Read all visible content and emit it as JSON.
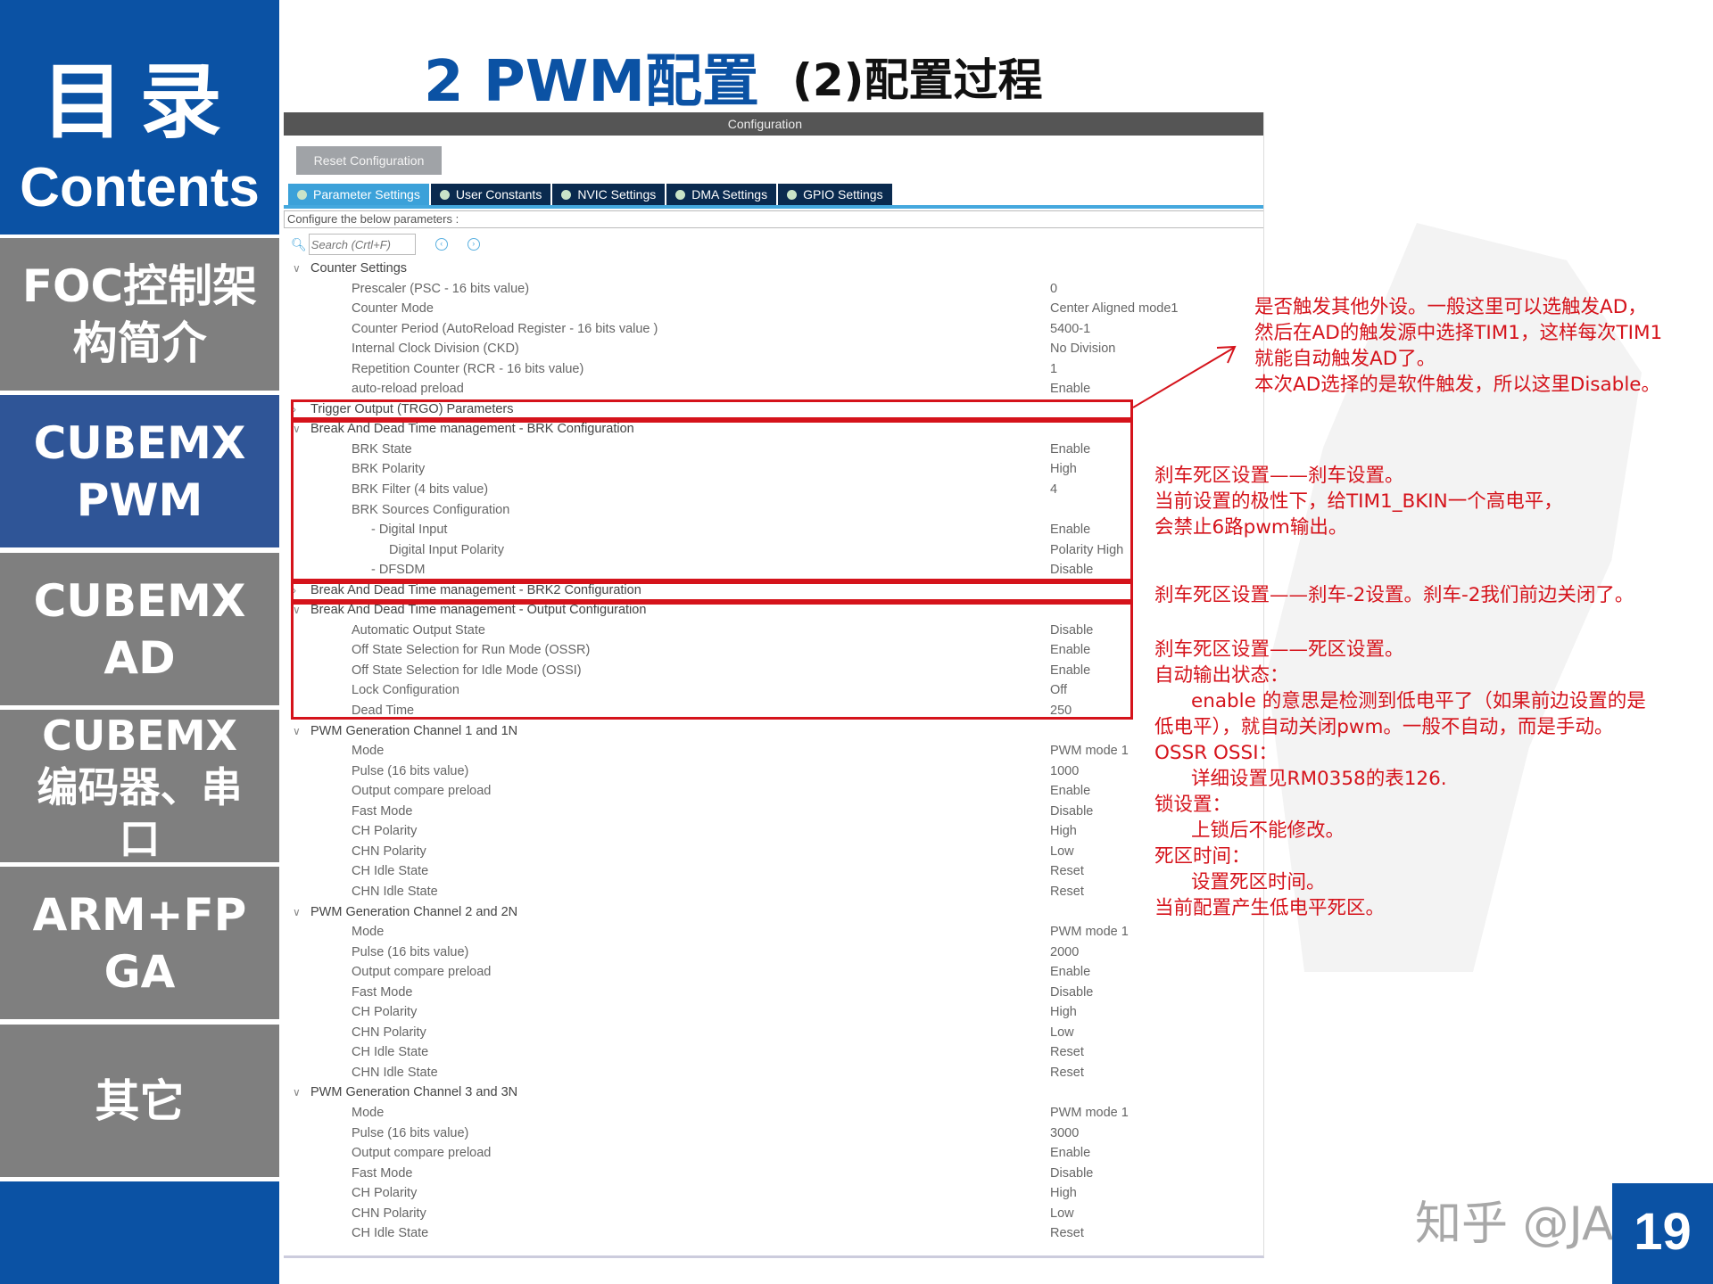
{
  "sidebar": {
    "heading_cn": "目录",
    "heading_en": "Contents",
    "items": [
      {
        "label": "FOC控制架\n构简介",
        "active": false
      },
      {
        "label": "CUBEMX\nPWM",
        "active": true
      },
      {
        "label": "CUBEMX\nAD",
        "active": false
      },
      {
        "label": "CUBEMX\n编码器、串\n口",
        "active": false
      },
      {
        "label": "ARM+FP\nGA",
        "active": false
      },
      {
        "label": "其它",
        "active": false
      }
    ]
  },
  "slide": {
    "title": "2 PWM配置",
    "subtitle": "(2)配置过程",
    "page_number": "19",
    "watermark": "知乎 @JAS"
  },
  "config": {
    "header": "Configuration",
    "reset_label": "Reset Configuration",
    "tabs": [
      {
        "label": "Parameter Settings",
        "active": true
      },
      {
        "label": "User Constants",
        "active": false
      },
      {
        "label": "NVIC Settings",
        "active": false
      },
      {
        "label": "DMA Settings",
        "active": false
      },
      {
        "label": "GPIO Settings",
        "active": false
      }
    ],
    "configure_text": "Configure the below parameters :",
    "search_placeholder": "Search (Crtl+F)",
    "rows": [
      {
        "label": "Counter Settings",
        "group": "open"
      },
      {
        "label": "Prescaler (PSC - 16 bits value)",
        "value": "0",
        "level": 1
      },
      {
        "label": "Counter Mode",
        "value": "Center Aligned mode1",
        "level": 1
      },
      {
        "label": "Counter Period (AutoReload Register - 16 bits value )",
        "value": "5400-1",
        "level": 1
      },
      {
        "label": "Internal Clock Division (CKD)",
        "value": "No Division",
        "level": 1
      },
      {
        "label": "Repetition Counter (RCR - 16 bits value)",
        "value": "1",
        "level": 1
      },
      {
        "label": "auto-reload preload",
        "value": "Enable",
        "level": 1
      },
      {
        "label": "Trigger Output (TRGO) Parameters",
        "group": "closed"
      },
      {
        "label": "Break And Dead Time management - BRK Configuration",
        "group": "open"
      },
      {
        "label": "BRK State",
        "value": "Enable",
        "level": 1
      },
      {
        "label": "BRK Polarity",
        "value": "High",
        "level": 1
      },
      {
        "label": "BRK Filter (4 bits value)",
        "value": "4",
        "level": 1
      },
      {
        "label": "BRK Sources Configuration",
        "value": "",
        "level": 1
      },
      {
        "label": "- Digital Input",
        "value": "Enable",
        "level": 2
      },
      {
        "label": "Digital Input Polarity",
        "value": "Polarity High",
        "level": 3
      },
      {
        "label": "- DFSDM",
        "value": "Disable",
        "level": 2
      },
      {
        "label": "Break And Dead Time management - BRK2 Configuration",
        "group": "closed"
      },
      {
        "label": "Break And Dead Time management - Output Configuration",
        "group": "open"
      },
      {
        "label": "Automatic Output State",
        "value": "Disable",
        "level": 1
      },
      {
        "label": "Off State Selection for Run Mode (OSSR)",
        "value": "Enable",
        "level": 1
      },
      {
        "label": "Off State Selection for Idle Mode (OSSI)",
        "value": "Enable",
        "level": 1
      },
      {
        "label": "Lock Configuration",
        "value": "Off",
        "level": 1
      },
      {
        "label": "Dead Time",
        "value": "250",
        "level": 1
      },
      {
        "label": "PWM Generation Channel 1 and 1N",
        "group": "open"
      },
      {
        "label": "Mode",
        "value": "PWM mode 1",
        "level": 1
      },
      {
        "label": "Pulse (16 bits value)",
        "value": "1000",
        "level": 1
      },
      {
        "label": "Output compare preload",
        "value": "Enable",
        "level": 1
      },
      {
        "label": "Fast Mode",
        "value": "Disable",
        "level": 1
      },
      {
        "label": "CH Polarity",
        "value": "High",
        "level": 1
      },
      {
        "label": "CHN Polarity",
        "value": "Low",
        "level": 1
      },
      {
        "label": "CH Idle State",
        "value": "Reset",
        "level": 1
      },
      {
        "label": "CHN Idle State",
        "value": "Reset",
        "level": 1
      },
      {
        "label": "PWM Generation Channel 2 and 2N",
        "group": "open"
      },
      {
        "label": "Mode",
        "value": "PWM mode 1",
        "level": 1
      },
      {
        "label": "Pulse (16 bits value)",
        "value": "2000",
        "level": 1
      },
      {
        "label": "Output compare preload",
        "value": "Enable",
        "level": 1
      },
      {
        "label": "Fast Mode",
        "value": "Disable",
        "level": 1
      },
      {
        "label": "CH Polarity",
        "value": "High",
        "level": 1
      },
      {
        "label": "CHN Polarity",
        "value": "Low",
        "level": 1
      },
      {
        "label": "CH Idle State",
        "value": "Reset",
        "level": 1
      },
      {
        "label": "CHN Idle State",
        "value": "Reset",
        "level": 1
      },
      {
        "label": "PWM Generation Channel 3 and 3N",
        "group": "open"
      },
      {
        "label": "Mode",
        "value": "PWM mode 1",
        "level": 1
      },
      {
        "label": "Pulse (16 bits value)",
        "value": "3000",
        "level": 1
      },
      {
        "label": "Output compare preload",
        "value": "Enable",
        "level": 1
      },
      {
        "label": "Fast Mode",
        "value": "Disable",
        "level": 1
      },
      {
        "label": "CH Polarity",
        "value": "High",
        "level": 1
      },
      {
        "label": "CHN Polarity",
        "value": "Low",
        "level": 1
      },
      {
        "label": "CH Idle State",
        "value": "Reset",
        "level": 1
      }
    ]
  },
  "annotations": {
    "trgo": [
      "是否触发其他外设。一般这里可以选触发AD，",
      "然后在AD的触发源中选择TIM1，这样每次TIM1",
      "就能自动触发AD了。",
      "本次AD选择的是软件触发，所以这里Disable。"
    ],
    "brk": [
      "刹车死区设置——刹车设置。",
      "当前设置的极性下，给TIM1_BKIN一个高电平，",
      "会禁止6路pwm输出。"
    ],
    "brk2": [
      "刹车死区设置——刹车-2设置。刹车-2我们前边关闭了。"
    ],
    "output": [
      "刹车死区设置——死区设置。",
      "自动输出状态：",
      "      enable 的意思是检测到低电平了（如果前边设置的是",
      "低电平），就自动关闭pwm。一般不自动，而是手动。",
      "OSSR OSSI：",
      "      详细设置见RM0358的表126.",
      "锁设置：",
      "      上锁后不能修改。",
      "死区时间：",
      "      设置死区时间。",
      "当前配置产生低电平死区。"
    ]
  },
  "colors": {
    "brand_blue": "#0b52a4",
    "active_item": "#2f5597",
    "inactive_item": "#7f7f7f",
    "annotation_red": "#d5131b",
    "tab_active": "#3ba1d9",
    "tab_inactive": "#0a2a4f"
  }
}
